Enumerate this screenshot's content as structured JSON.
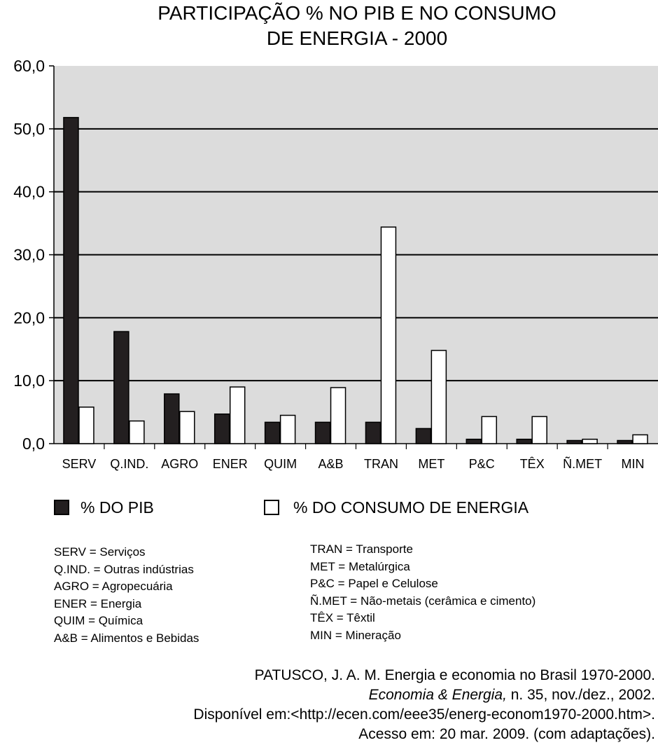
{
  "title_lines": [
    "PARTICIPAÇÃO % NO PIB E NO CONSUMO",
    "DE ENERGIA - 2000"
  ],
  "chart_data": {
    "type": "bar",
    "categories": [
      "SERV",
      "Q.IND.",
      "AGRO",
      "ENER",
      "QUIM",
      "A&B",
      "TRAN",
      "MET",
      "P&C",
      "TÊX",
      "Ñ.MET",
      "MIN"
    ],
    "series": [
      {
        "name": "% DO PIB",
        "color": "#231f20",
        "values": [
          51.8,
          17.8,
          7.9,
          4.7,
          3.4,
          3.4,
          3.4,
          2.4,
          0.7,
          0.7,
          0.5,
          0.5
        ]
      },
      {
        "name": "% DO CONSUMO DE ENERGIA",
        "color": "#ffffff",
        "values": [
          5.8,
          3.6,
          5.1,
          9.0,
          4.5,
          8.9,
          34.4,
          14.8,
          4.3,
          4.3,
          0.7,
          1.4
        ]
      }
    ],
    "yticks": [
      "0,0",
      "10,0",
      "20,0",
      "30,0",
      "40,0",
      "50,0",
      "60,0"
    ],
    "ylim": [
      0,
      60
    ],
    "grid": true,
    "plot_background": "#dcdcdc"
  },
  "legend": {
    "pib": "% DO PIB",
    "energia": "% DO CONSUMO DE ENERGIA"
  },
  "glossary_left": [
    "SERV = Serviços",
    "Q.IND. = Outras indústrias",
    "AGRO = Agropecuária",
    "ENER = Energia",
    "QUIM = Química",
    "A&B = Alimentos e Bebidas"
  ],
  "glossary_right": [
    "TRAN = Transporte",
    "MET = Metalúrgica",
    "P&C = Papel e Celulose",
    "Ñ.MET = Não-metais (cerâmica e cimento)",
    "TÊX = Têxtil",
    "MIN = Mineração"
  ],
  "source": {
    "line1": "PATUSCO, J. A. M. Energia e economia no Brasil 1970-2000.",
    "line2_italic": "Economia & Energia,",
    "line2_rest": " n. 35, nov./dez., 2002.",
    "line3": "Disponível em:<http://ecen.com/eee35/energ-econom1970-2000.htm>.",
    "line4": "Acesso em: 20 mar. 2009. (com adaptações)."
  }
}
